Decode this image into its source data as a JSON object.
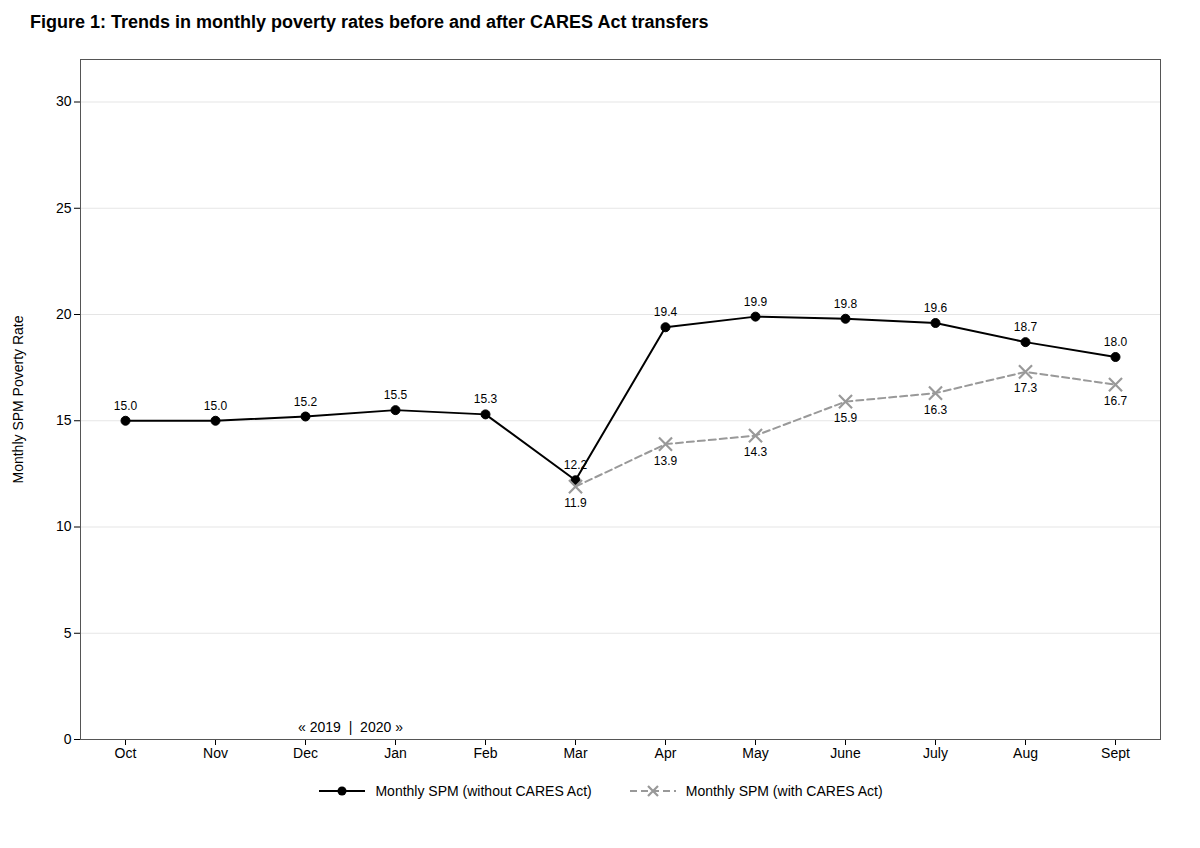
{
  "chart_data": {
    "type": "line",
    "title": "Figure 1: Trends in monthly poverty rates before and after CARES Act transfers",
    "y_label": "Monthly SPM Poverty Rate",
    "categories": [
      "Oct",
      "Nov",
      "Dec",
      "Jan",
      "Feb",
      "Mar",
      "Apr",
      "May",
      "June",
      "July",
      "Aug",
      "Sept"
    ],
    "series": [
      {
        "name": "Monthly SPM (without CARES Act)",
        "color": "#000000",
        "marker": "circle",
        "line_style": "solid",
        "values": [
          15.0,
          15.0,
          15.2,
          15.5,
          15.3,
          12.2,
          19.4,
          19.9,
          19.8,
          19.6,
          18.7,
          18.0
        ],
        "value_labels": [
          "15.0",
          "15.0",
          "15.2",
          "15.5",
          "15.3",
          "12.2",
          "19.4",
          "19.9",
          "19.8",
          "19.6",
          "18.7",
          "18.0"
        ]
      },
      {
        "name": "Monthly SPM (with CARES Act)",
        "color": "#999999",
        "marker": "x",
        "line_style": "dashed",
        "values": [
          null,
          null,
          null,
          null,
          null,
          11.9,
          13.9,
          14.3,
          15.9,
          16.3,
          17.3,
          16.7
        ],
        "value_labels": [
          null,
          null,
          null,
          null,
          null,
          "11.9",
          "13.9",
          "14.3",
          "15.9",
          "16.3",
          "17.3",
          "16.7"
        ]
      }
    ],
    "annotations": [
      "« 2019  |  2020 »"
    ],
    "ylim": [
      0,
      32
    ],
    "yticks": [
      0,
      5,
      10,
      15,
      20,
      25,
      30
    ],
    "grid": true,
    "data_labels": true,
    "legend": "bottom"
  }
}
